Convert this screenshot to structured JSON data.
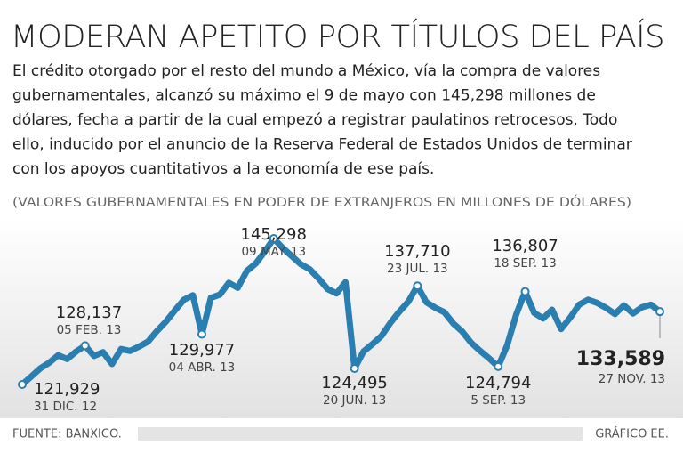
{
  "chart_data": {
    "type": "line",
    "title": "MODERAN APETITO POR TÍTULOS DEL PAÍS",
    "description": [
      "El crédito otorgado por el resto del mundo a México, vía la compra de valores",
      "gubernamentales, alcanzó su máximo el 9 de mayo con 145,298 millones de",
      "dólares, fecha a partir de la cual empezó a registrar paulatinos retrocesos. Todo",
      "ello, inducido por el anuncio de la Reserva Federal de Estados Unidos de terminar",
      "con los apoyos cuantitativos a la economía de ese país."
    ],
    "subtitle": "(VALORES GUBERNAMENTALES EN PODER DE EXTRANJEROS EN MILLONES DE DÓLARES)",
    "series": [
      {
        "color": "#2a7fb0",
        "values": [
          121929,
          123200,
          124500,
          125400,
          126600,
          126000,
          127200,
          128137,
          126500,
          127100,
          125200,
          127600,
          127300,
          128000,
          128800,
          130500,
          132000,
          133800,
          135500,
          136200,
          129977,
          135800,
          136300,
          138200,
          137400,
          140100,
          141300,
          143200,
          145298,
          143800,
          142500,
          141200,
          140400,
          138900,
          137200,
          136500,
          138300,
          124495,
          127200,
          128400,
          129700,
          131800,
          133600,
          135200,
          137710,
          135100,
          134200,
          133500,
          131700,
          130400,
          128600,
          127300,
          126100,
          124794,
          128200,
          133100,
          136807,
          133400,
          132500,
          133900,
          130800,
          132600,
          134700,
          135500,
          135000,
          134200,
          133200,
          134600,
          133300,
          134300,
          134700,
          133589
        ]
      }
    ],
    "annotations": [
      {
        "value": 121929,
        "label": "121,929",
        "date": "31 DIC. 12"
      },
      {
        "value": 128137,
        "label": "128,137",
        "date": "05 FEB. 13"
      },
      {
        "value": 129977,
        "label": "129,977",
        "date": "04 ABR. 13"
      },
      {
        "value": 145298,
        "label": "145,298",
        "date": "09 MAY. 13"
      },
      {
        "value": 124495,
        "label": "124,495",
        "date": "20 JUN. 13"
      },
      {
        "value": 137710,
        "label": "137,710",
        "date": "23 JUL. 13"
      },
      {
        "value": 124794,
        "label": "124,794",
        "date": "5 SEP. 13"
      },
      {
        "value": 136807,
        "label": "136,807",
        "date": "18 SEP. 13"
      },
      {
        "value": 133589,
        "label": "133,589",
        "date": "27 NOV. 13"
      }
    ],
    "source": "FUENTE: BANXICO.",
    "credit": "GRÁFICO EE."
  }
}
